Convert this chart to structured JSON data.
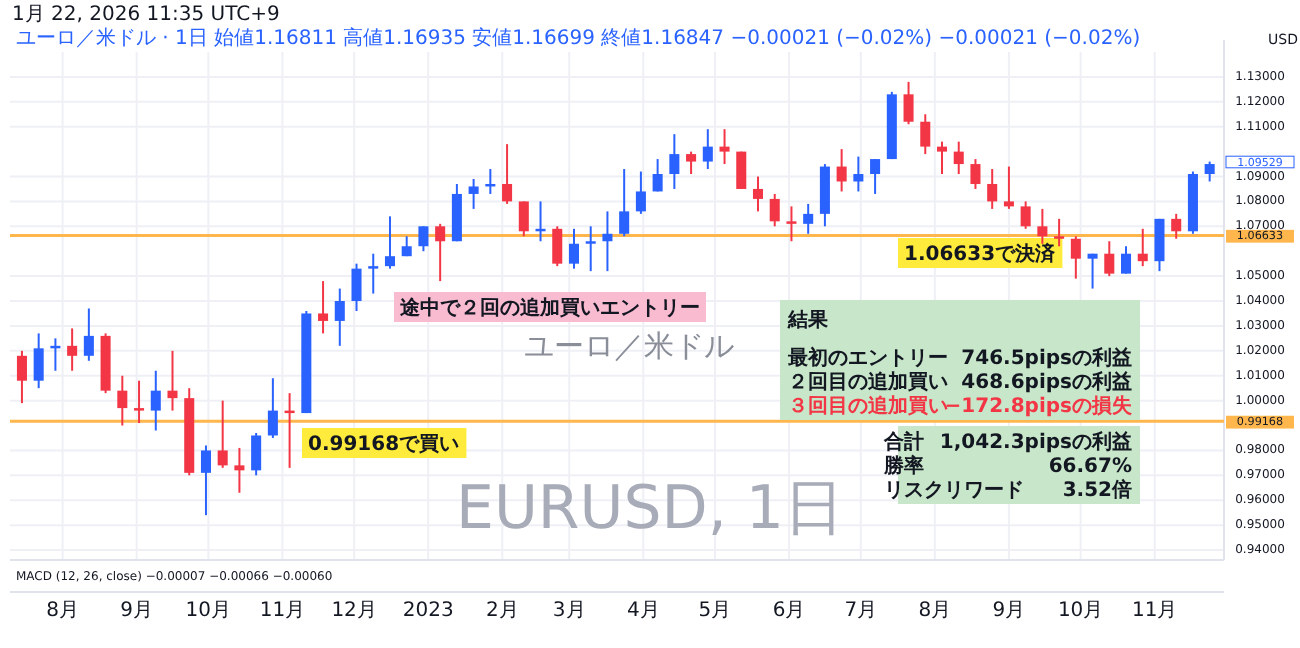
{
  "chart_data": {
    "type": "candlestick",
    "title": "1月 22, 2026 11:35 UTC+9",
    "subtitle": "ユーロ／米ドル · 1日   始値1.16811 高値1.16935 安値1.16699 終値1.16847 −0.00021 (−0.02%) −0.00021 (−0.02%)",
    "ylabel": "USD",
    "x": [
      "2022-07-15",
      "2022-07-22",
      "2022-07-29",
      "2022-08-05",
      "2022-08-12",
      "2022-08-19",
      "2022-08-26",
      "2022-09-02",
      "2022-09-09",
      "2022-09-16",
      "2022-09-23",
      "2022-09-30",
      "2022-10-07",
      "2022-10-14",
      "2022-10-21",
      "2022-10-28",
      "2022-11-04",
      "2022-11-11",
      "2022-11-18",
      "2022-11-25",
      "2022-12-02",
      "2022-12-09",
      "2022-12-16",
      "2022-12-23",
      "2022-12-30",
      "2023-01-06",
      "2023-01-13",
      "2023-01-20",
      "2023-01-27",
      "2023-02-03",
      "2023-02-10",
      "2023-02-17",
      "2023-02-24",
      "2023-03-03",
      "2023-03-10",
      "2023-03-17",
      "2023-03-24",
      "2023-03-31",
      "2023-04-07",
      "2023-04-14",
      "2023-04-21",
      "2023-04-28",
      "2023-05-05",
      "2023-05-12",
      "2023-05-19",
      "2023-05-26",
      "2023-06-02",
      "2023-06-09",
      "2023-06-16",
      "2023-06-23",
      "2023-06-30",
      "2023-07-07",
      "2023-07-14",
      "2023-07-21",
      "2023-07-28",
      "2023-08-04",
      "2023-08-11",
      "2023-08-18",
      "2023-08-25",
      "2023-09-01",
      "2023-09-08",
      "2023-09-15",
      "2023-09-22",
      "2023-09-29",
      "2023-10-06",
      "2023-10-13",
      "2023-10-20",
      "2023-10-27",
      "2023-11-03",
      "2023-11-10",
      "2023-11-17",
      "2023-11-24"
    ],
    "ohlc": [
      [
        1.018,
        1.02,
        0.999,
        1.008
      ],
      [
        1.008,
        1.027,
        1.005,
        1.021
      ],
      [
        1.021,
        1.025,
        1.012,
        1.022
      ],
      [
        1.022,
        1.029,
        1.012,
        1.018
      ],
      [
        1.018,
        1.037,
        1.016,
        1.026
      ],
      [
        1.026,
        1.027,
        1.003,
        1.004
      ],
      [
        1.004,
        1.01,
        0.99,
        0.997
      ],
      [
        0.997,
        1.008,
        0.991,
        0.996
      ],
      [
        0.996,
        1.012,
        0.988,
        1.004
      ],
      [
        1.004,
        1.02,
        0.996,
        1.001
      ],
      [
        1.001,
        1.005,
        0.97,
        0.971
      ],
      [
        0.971,
        0.982,
        0.954,
        0.98
      ],
      [
        0.98,
        1.0,
        0.973,
        0.974
      ],
      [
        0.974,
        0.981,
        0.963,
        0.972
      ],
      [
        0.972,
        0.987,
        0.97,
        0.986
      ],
      [
        0.986,
        1.009,
        0.985,
        0.996
      ],
      [
        0.996,
        1.003,
        0.973,
        0.995
      ],
      [
        0.995,
        1.036,
        0.995,
        1.035
      ],
      [
        1.035,
        1.048,
        1.027,
        1.032
      ],
      [
        1.032,
        1.045,
        1.022,
        1.04
      ],
      [
        1.04,
        1.055,
        1.036,
        1.053
      ],
      [
        1.053,
        1.059,
        1.043,
        1.054
      ],
      [
        1.054,
        1.074,
        1.053,
        1.058
      ],
      [
        1.058,
        1.066,
        1.058,
        1.062
      ],
      [
        1.062,
        1.07,
        1.06,
        1.07
      ],
      [
        1.07,
        1.071,
        1.048,
        1.064
      ],
      [
        1.064,
        1.087,
        1.064,
        1.083
      ],
      [
        1.083,
        1.089,
        1.077,
        1.086
      ],
      [
        1.086,
        1.093,
        1.083,
        1.087
      ],
      [
        1.087,
        1.103,
        1.079,
        1.08
      ],
      [
        1.08,
        1.08,
        1.066,
        1.068
      ],
      [
        1.068,
        1.08,
        1.064,
        1.069
      ],
      [
        1.069,
        1.07,
        1.054,
        1.055
      ],
      [
        1.055,
        1.069,
        1.053,
        1.063
      ],
      [
        1.063,
        1.07,
        1.052,
        1.064
      ],
      [
        1.064,
        1.076,
        1.052,
        1.067
      ],
      [
        1.067,
        1.093,
        1.066,
        1.076
      ],
      [
        1.076,
        1.092,
        1.075,
        1.084
      ],
      [
        1.084,
        1.097,
        1.084,
        1.091
      ],
      [
        1.091,
        1.107,
        1.085,
        1.099
      ],
      [
        1.099,
        1.1,
        1.091,
        1.096
      ],
      [
        1.096,
        1.109,
        1.093,
        1.102
      ],
      [
        1.102,
        1.109,
        1.095,
        1.1
      ],
      [
        1.1,
        1.1,
        1.085,
        1.085
      ],
      [
        1.085,
        1.09,
        1.076,
        1.081
      ],
      [
        1.081,
        1.083,
        1.07,
        1.072
      ],
      [
        1.072,
        1.078,
        1.064,
        1.071
      ],
      [
        1.071,
        1.079,
        1.067,
        1.075
      ],
      [
        1.075,
        1.095,
        1.07,
        1.094
      ],
      [
        1.094,
        1.101,
        1.084,
        1.088
      ],
      [
        1.088,
        1.098,
        1.084,
        1.091
      ],
      [
        1.091,
        1.097,
        1.083,
        1.097
      ],
      [
        1.097,
        1.124,
        1.097,
        1.123
      ],
      [
        1.123,
        1.128,
        1.111,
        1.112
      ],
      [
        1.112,
        1.115,
        1.099,
        1.102
      ],
      [
        1.102,
        1.104,
        1.091,
        1.1
      ],
      [
        1.1,
        1.104,
        1.091,
        1.095
      ],
      [
        1.095,
        1.097,
        1.085,
        1.087
      ],
      [
        1.087,
        1.093,
        1.077,
        1.08
      ],
      [
        1.08,
        1.094,
        1.077,
        1.078
      ],
      [
        1.078,
        1.08,
        1.069,
        1.07
      ],
      [
        1.07,
        1.077,
        1.063,
        1.066
      ],
      [
        1.066,
        1.073,
        1.062,
        1.065
      ],
      [
        1.065,
        1.066,
        1.049,
        1.057
      ],
      [
        1.057,
        1.059,
        1.045,
        1.059
      ],
      [
        1.059,
        1.064,
        1.05,
        1.051
      ],
      [
        1.051,
        1.062,
        1.051,
        1.059
      ],
      [
        1.059,
        1.069,
        1.054,
        1.056
      ],
      [
        1.056,
        1.073,
        1.052,
        1.073
      ],
      [
        1.073,
        1.075,
        1.065,
        1.068
      ],
      [
        1.068,
        1.092,
        1.067,
        1.091
      ],
      [
        1.091,
        1.096,
        1.088,
        1.095
      ]
    ],
    "xlim": [
      "2022-07-10",
      "2023-11-30"
    ],
    "ylim": [
      0.936,
      1.14
    ],
    "xticks": [
      {
        "value": "2022-08-01",
        "label": "8月"
      },
      {
        "value": "2022-09-01",
        "label": "9月"
      },
      {
        "value": "2022-10-01",
        "label": "10月"
      },
      {
        "value": "2022-11-01",
        "label": "11月"
      },
      {
        "value": "2022-12-01",
        "label": "12月"
      },
      {
        "value": "2023-01-01",
        "label": "2023"
      },
      {
        "value": "2023-02-01",
        "label": "2月"
      },
      {
        "value": "2023-03-01",
        "label": "3月"
      },
      {
        "value": "2023-04-01",
        "label": "4月"
      },
      {
        "value": "2023-05-01",
        "label": "5月"
      },
      {
        "value": "2023-06-01",
        "label": "6月"
      },
      {
        "value": "2023-07-01",
        "label": "7月"
      },
      {
        "value": "2023-08-01",
        "label": "8月"
      },
      {
        "value": "2023-09-01",
        "label": "9月"
      },
      {
        "value": "2023-10-01",
        "label": "10月"
      },
      {
        "value": "2023-11-01",
        "label": "11月"
      }
    ],
    "yticks": [
      {
        "value": 0.94,
        "label": "0.94000"
      },
      {
        "value": 0.95,
        "label": "0.95000"
      },
      {
        "value": 0.96,
        "label": "0.96000"
      },
      {
        "value": 0.97,
        "label": "0.97000"
      },
      {
        "value": 0.98,
        "label": "0.98000"
      },
      {
        "value": 1.0,
        "label": "1.00000"
      },
      {
        "value": 1.01,
        "label": "1.01000"
      },
      {
        "value": 1.02,
        "label": "1.02000"
      },
      {
        "value": 1.03,
        "label": "1.03000"
      },
      {
        "value": 1.04,
        "label": "1.04000"
      },
      {
        "value": 1.05,
        "label": "1.05000"
      },
      {
        "value": 1.07,
        "label": "1.07000"
      },
      {
        "value": 1.08,
        "label": "1.08000"
      },
      {
        "value": 1.09,
        "label": "1.09000"
      },
      {
        "value": 1.11,
        "label": "1.11000"
      },
      {
        "value": 1.12,
        "label": "1.12000"
      },
      {
        "value": 1.13,
        "label": "1.13000"
      }
    ],
    "grid": true,
    "ref_lines": [
      {
        "axis": "y",
        "value": 1.06633,
        "label": "1.06633",
        "color": "#ffb74d"
      },
      {
        "axis": "y",
        "value": 0.99168,
        "label": "0.99168",
        "color": "#ffb74d"
      }
    ],
    "annotations": [
      "EURUSD, 1日",
      "ユーロ／米ドル",
      "途中で２回の追加買いエントリー",
      "1.06633で決済",
      "0.99168で買い",
      "結果",
      "最初のエントリー",
      "746.5pipsの利益",
      "２回目の追加買い",
      "468.6pipsの利益",
      "３回目の追加買い",
      "−172.8pipsの損失",
      "合計",
      "1,042.3pipsの利益",
      "勝率",
      "66.67%",
      "リスクリワード",
      "3.52倍",
      "MACD (12, 26, close)  −0.00007  −0.00066  −0.00060",
      "1.09529"
    ]
  }
}
